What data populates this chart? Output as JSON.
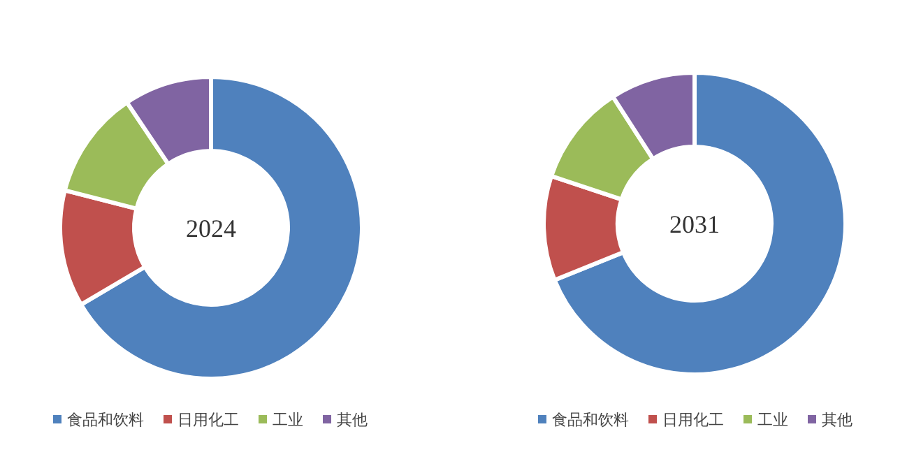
{
  "chart_data": [
    {
      "type": "donut",
      "title": "2024",
      "categories": [
        "食品和饮料",
        "日用化工",
        "工业",
        "其他"
      ],
      "values": [
        66.5,
        12.5,
        11.6,
        9.4
      ],
      "colors": [
        "#4f81bd",
        "#c0504d",
        "#9bbb59",
        "#8064a2"
      ],
      "legend": "bottom"
    },
    {
      "type": "donut",
      "title": "2031",
      "categories": [
        "食品和饮料",
        "日用化工",
        "工业",
        "其他"
      ],
      "values": [
        68.9,
        11.2,
        10.8,
        9.1
      ],
      "colors": [
        "#4f81bd",
        "#c0504d",
        "#9bbb59",
        "#8064a2"
      ],
      "legend": "bottom"
    }
  ]
}
